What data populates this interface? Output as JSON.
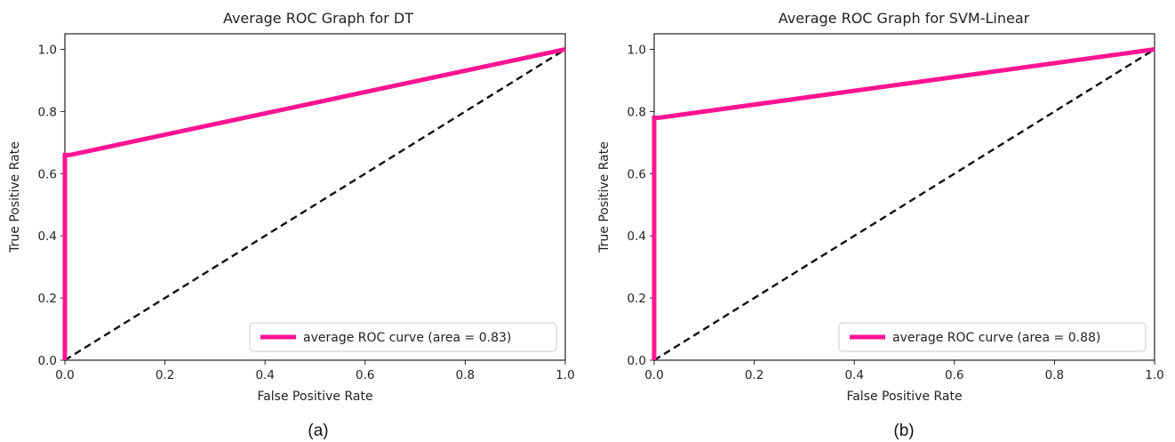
{
  "chart_data": [
    {
      "type": "line",
      "title": "Average ROC Graph for DT",
      "xlabel": "False Positive Rate",
      "ylabel": "True Positive Rate",
      "xlim": [
        0.0,
        1.0
      ],
      "ylim": [
        0.0,
        1.05
      ],
      "xticks": [
        "0.0",
        "0.2",
        "0.4",
        "0.6",
        "0.8",
        "1.0"
      ],
      "yticks": [
        "0.0",
        "0.2",
        "0.4",
        "0.6",
        "0.8",
        "1.0"
      ],
      "series": [
        {
          "name": "average ROC curve (area = 0.83)",
          "color": "#ff1493",
          "style": "solid",
          "x": [
            0.0,
            0.0,
            0.01,
            1.0
          ],
          "y": [
            0.0,
            0.66,
            0.66,
            1.0
          ]
        },
        {
          "color": "#111111",
          "style": "dashed",
          "x": [
            0.0,
            1.0
          ],
          "y": [
            0.0,
            1.0
          ]
        }
      ],
      "legend_position": "lower-right",
      "caption": "(a)"
    },
    {
      "type": "line",
      "title": "Average ROC Graph for SVM-Linear",
      "xlabel": "False Positive Rate",
      "ylabel": "True Positive Rate",
      "xlim": [
        0.0,
        1.0
      ],
      "ylim": [
        0.0,
        1.05
      ],
      "xticks": [
        "0.0",
        "0.2",
        "0.4",
        "0.6",
        "0.8",
        "1.0"
      ],
      "yticks": [
        "0.0",
        "0.2",
        "0.4",
        "0.6",
        "0.8",
        "1.0"
      ],
      "series": [
        {
          "name": "average ROC curve (area = 0.88)",
          "color": "#ff1493",
          "style": "solid",
          "x": [
            0.0,
            0.0,
            0.01,
            1.0
          ],
          "y": [
            0.0,
            0.78,
            0.78,
            1.0
          ]
        },
        {
          "color": "#111111",
          "style": "dashed",
          "x": [
            0.0,
            1.0
          ],
          "y": [
            0.0,
            1.0
          ]
        }
      ],
      "legend_position": "lower-right",
      "caption": "(b)"
    }
  ]
}
